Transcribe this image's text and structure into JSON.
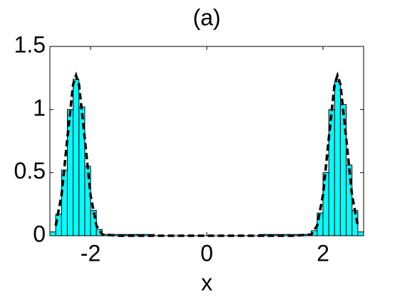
{
  "chart_data": {
    "type": "histogram",
    "title": "(a)",
    "x_label": "x",
    "bins": [
      -2.7,
      -2.6,
      -2.5,
      -2.4,
      -2.3,
      -2.2,
      -2.1,
      -2.0,
      -1.9,
      -1.8,
      -1.7,
      -1.6,
      -1.5,
      -1.4,
      -1.3,
      -1.2,
      -1.1,
      -1.0,
      -0.9,
      -0.8,
      -0.7,
      -0.6,
      -0.5,
      -0.4,
      -0.3,
      -0.2,
      -0.1,
      0.0,
      0.1,
      0.2,
      0.3,
      0.4,
      0.5,
      0.6,
      0.7,
      0.8,
      0.9,
      1.0,
      1.1,
      1.2,
      1.3,
      1.4,
      1.5,
      1.6,
      1.7,
      1.8,
      1.9,
      2.0,
      2.1,
      2.2,
      2.3,
      2.4,
      2.5,
      2.6,
      2.7
    ],
    "values": [
      0.03,
      0.17,
      0.52,
      1.0,
      1.24,
      1.02,
      0.55,
      0.2,
      0.05,
      0.01,
      0.01,
      0.01,
      0.01,
      0.01,
      0.01,
      0.01,
      0.01,
      0.01,
      0,
      0,
      0,
      0,
      0,
      0,
      0,
      0,
      0,
      0,
      0,
      0,
      0,
      0,
      0,
      0,
      0,
      0,
      0.01,
      0.01,
      0.01,
      0.01,
      0.01,
      0.01,
      0.01,
      0.01,
      0.01,
      0.04,
      0.18,
      0.5,
      1.0,
      1.22,
      1.04,
      0.56,
      0.2,
      0.03
    ],
    "color": "#00ffff",
    "curve": {
      "x": [
        -2.6,
        -2.5,
        -2.4,
        -2.3,
        -2.25,
        -2.2,
        -2.1,
        -2.0,
        -1.9,
        -1.8,
        -1.5,
        -1.0,
        -0.5,
        0,
        0.5,
        1.0,
        1.5,
        1.8,
        1.9,
        2.0,
        2.1,
        2.2,
        2.25,
        2.3,
        2.4,
        2.5,
        2.6
      ],
      "values": [
        0.08,
        0.32,
        0.77,
        1.2,
        1.27,
        1.2,
        0.77,
        0.32,
        0.08,
        0.01,
        0,
        0,
        0,
        0,
        0,
        0,
        0,
        0.01,
        0.08,
        0.32,
        0.77,
        1.2,
        1.27,
        1.2,
        0.77,
        0.32,
        0.08
      ],
      "color": "#000000",
      "dashed": true
    },
    "xlim": [
      -2.7,
      2.7
    ],
    "ylim": [
      0,
      1.5
    ],
    "xticks": [
      -2,
      0,
      2
    ],
    "yticks": [
      0,
      0.5,
      1,
      1.5
    ],
    "grid": false
  }
}
